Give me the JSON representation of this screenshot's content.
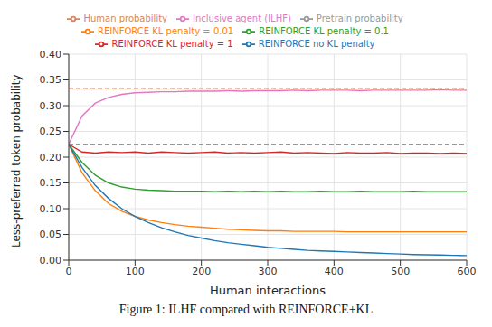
{
  "chart_data": {
    "type": "line",
    "x_label": "Human interactions",
    "y_label": "Less-preferred token probability",
    "caption": "Figure 1: ILHF compared with REINFORCE+KL",
    "x": [
      0,
      20,
      40,
      60,
      80,
      100,
      120,
      140,
      160,
      180,
      200,
      220,
      240,
      260,
      280,
      300,
      320,
      340,
      360,
      380,
      400,
      420,
      440,
      460,
      480,
      500,
      520,
      540,
      560,
      580,
      600
    ],
    "xlim": [
      0,
      600
    ],
    "xticks": [
      0,
      100,
      200,
      300,
      400,
      500,
      600
    ],
    "ylim": [
      0,
      0.4
    ],
    "yticks": [
      {
        "value": 0,
        "label": "0.00"
      },
      {
        "value": 0.05,
        "label": "0.05"
      },
      {
        "value": 0.1,
        "label": "0.10"
      },
      {
        "value": 0.15,
        "label": "0.15"
      },
      {
        "value": 0.2,
        "label": "0.20"
      },
      {
        "value": 0.25,
        "label": "0.25"
      },
      {
        "value": 0.3,
        "label": "0.30"
      },
      {
        "value": 0.35,
        "label": "0.35"
      },
      {
        "value": 0.4,
        "label": "0.40"
      }
    ],
    "grid": true,
    "legend": "top",
    "series": [
      {
        "name": "Human probability",
        "color": "#d9825b",
        "line_style": "dashed",
        "values": [
          0.333,
          0.333,
          0.333,
          0.333,
          0.333,
          0.333,
          0.333,
          0.333,
          0.333,
          0.333,
          0.333,
          0.333,
          0.333,
          0.333,
          0.333,
          0.333,
          0.333,
          0.333,
          0.333,
          0.333,
          0.333,
          0.333,
          0.333,
          0.333,
          0.333,
          0.333,
          0.333,
          0.333,
          0.333,
          0.333,
          0.333
        ]
      },
      {
        "name": "Pretrain probability",
        "color": "#999999",
        "line_style": "dashed",
        "values": [
          0.225,
          0.225,
          0.225,
          0.225,
          0.225,
          0.225,
          0.225,
          0.225,
          0.225,
          0.225,
          0.225,
          0.225,
          0.225,
          0.225,
          0.225,
          0.225,
          0.225,
          0.225,
          0.225,
          0.225,
          0.225,
          0.225,
          0.225,
          0.225,
          0.225,
          0.225,
          0.225,
          0.225,
          0.225,
          0.225,
          0.225
        ]
      },
      {
        "name": "Inclusive agent (ILHF)",
        "color": "#e377c2",
        "line_style": "solid",
        "values": [
          0.225,
          0.28,
          0.305,
          0.316,
          0.322,
          0.325,
          0.326,
          0.327,
          0.327,
          0.328,
          0.328,
          0.328,
          0.329,
          0.328,
          0.329,
          0.329,
          0.329,
          0.33,
          0.329,
          0.33,
          0.33,
          0.33,
          0.329,
          0.33,
          0.33,
          0.33,
          0.33,
          0.33,
          0.331,
          0.33,
          0.33
        ]
      },
      {
        "name": "REINFORCE KL penalty = 1",
        "color": "#d62728",
        "line_style": "solid",
        "values": [
          0.225,
          0.21,
          0.208,
          0.21,
          0.209,
          0.21,
          0.208,
          0.21,
          0.209,
          0.208,
          0.209,
          0.21,
          0.208,
          0.209,
          0.208,
          0.209,
          0.21,
          0.208,
          0.209,
          0.208,
          0.207,
          0.209,
          0.208,
          0.208,
          0.209,
          0.207,
          0.208,
          0.208,
          0.207,
          0.208,
          0.207
        ]
      },
      {
        "name": "REINFORCE KL penalty = 0.1",
        "color": "#2ca02c",
        "line_style": "solid",
        "values": [
          0.225,
          0.19,
          0.165,
          0.15,
          0.142,
          0.138,
          0.136,
          0.135,
          0.134,
          0.134,
          0.134,
          0.133,
          0.134,
          0.133,
          0.134,
          0.133,
          0.134,
          0.133,
          0.133,
          0.134,
          0.133,
          0.133,
          0.134,
          0.133,
          0.133,
          0.133,
          0.134,
          0.133,
          0.133,
          0.133,
          0.133
        ]
      },
      {
        "name": "REINFORCE KL penalty = 0.01",
        "color": "#ff7f0e",
        "line_style": "solid",
        "values": [
          0.225,
          0.17,
          0.135,
          0.11,
          0.095,
          0.085,
          0.078,
          0.073,
          0.069,
          0.066,
          0.064,
          0.062,
          0.06,
          0.059,
          0.058,
          0.057,
          0.057,
          0.056,
          0.056,
          0.056,
          0.056,
          0.055,
          0.055,
          0.055,
          0.055,
          0.055,
          0.055,
          0.055,
          0.055,
          0.055,
          0.055
        ]
      },
      {
        "name": "REINFORCE no KL penalty",
        "color": "#1f77b4",
        "line_style": "solid",
        "values": [
          0.225,
          0.18,
          0.145,
          0.12,
          0.1,
          0.085,
          0.073,
          0.063,
          0.055,
          0.048,
          0.043,
          0.038,
          0.034,
          0.031,
          0.028,
          0.025,
          0.023,
          0.021,
          0.019,
          0.018,
          0.017,
          0.016,
          0.015,
          0.014,
          0.013,
          0.012,
          0.011,
          0.0105,
          0.01,
          0.0095,
          0.009
        ]
      }
    ]
  }
}
